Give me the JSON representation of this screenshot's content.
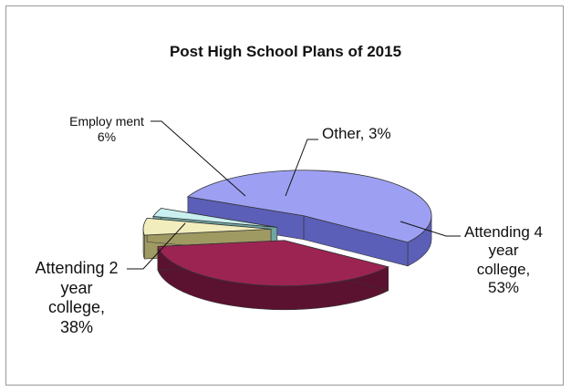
{
  "chart_data": {
    "type": "pie",
    "title": "Post High School Plans of 2015",
    "slices": [
      {
        "label_lines": [
          "Attending 4",
          "year",
          "college,",
          "53%"
        ],
        "value": 53,
        "color": "#9da0f2",
        "side": "#5c5fb8"
      },
      {
        "label_lines": [
          "Other, 3%"
        ],
        "value": 3,
        "color": "#c9f0ee",
        "side": "#6fa6a3"
      },
      {
        "label_lines": [
          "Employ ment",
          "6%"
        ],
        "value": 6,
        "color": "#f1edbd",
        "side": "#9e9a62"
      },
      {
        "label_lines": [
          "Attending 2",
          "year",
          "college,",
          "38%"
        ],
        "value": 38,
        "color": "#9c2452",
        "side": "#5b1230"
      }
    ],
    "exploded": true,
    "three_d": true
  }
}
